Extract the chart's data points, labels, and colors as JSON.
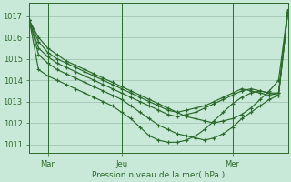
{
  "background_color": "#c8e8d8",
  "grid_color": "#aaccbb",
  "line_color": "#2d6a2d",
  "xlabel": "Pression niveau de la mer( hPa )",
  "yticks": [
    1011,
    1012,
    1013,
    1014,
    1015,
    1016,
    1017
  ],
  "ylim": [
    1010.6,
    1017.6
  ],
  "xtick_labels": [
    "Mar",
    "Jeu",
    "Mer"
  ],
  "xtick_positions": [
    2,
    10,
    22
  ],
  "xlim": [
    0,
    28
  ],
  "figsize": [
    3.2,
    2.0
  ],
  "dpi": 100,
  "series": [
    [
      1016.8,
      1016.0,
      1015.5,
      1015.2,
      1014.9,
      1014.7,
      1014.5,
      1014.3,
      1014.1,
      1013.9,
      1013.7,
      1013.5,
      1013.3,
      1013.1,
      1012.9,
      1012.7,
      1012.5,
      1012.3,
      1012.2,
      1012.1,
      1012.0,
      1012.1,
      1012.2,
      1012.4,
      1012.7,
      1013.1,
      1013.5,
      1014.0,
      1017.3
    ],
    [
      1016.8,
      1015.8,
      1015.3,
      1015.0,
      1014.8,
      1014.6,
      1014.4,
      1014.2,
      1014.0,
      1013.8,
      1013.6,
      1013.4,
      1013.2,
      1013.0,
      1012.8,
      1012.6,
      1012.5,
      1012.6,
      1012.7,
      1012.8,
      1013.0,
      1013.2,
      1013.4,
      1013.6,
      1013.5,
      1013.4,
      1013.3,
      1013.4,
      1017.2
    ],
    [
      1016.8,
      1015.5,
      1015.1,
      1014.8,
      1014.6,
      1014.4,
      1014.2,
      1014.0,
      1013.8,
      1013.6,
      1013.4,
      1013.2,
      1013.0,
      1012.8,
      1012.6,
      1012.4,
      1012.3,
      1012.4,
      1012.5,
      1012.7,
      1012.9,
      1013.1,
      1013.3,
      1013.5,
      1013.6,
      1013.5,
      1013.4,
      1013.4,
      1017.2
    ],
    [
      1016.8,
      1015.2,
      1014.8,
      1014.5,
      1014.3,
      1014.1,
      1013.9,
      1013.7,
      1013.5,
      1013.3,
      1013.1,
      1012.8,
      1012.5,
      1012.2,
      1011.9,
      1011.7,
      1011.5,
      1011.4,
      1011.3,
      1011.2,
      1011.3,
      1011.5,
      1011.8,
      1012.2,
      1012.5,
      1012.8,
      1013.1,
      1013.3,
      1017.2
    ],
    [
      1016.8,
      1014.5,
      1014.2,
      1014.0,
      1013.8,
      1013.6,
      1013.4,
      1013.2,
      1013.0,
      1012.8,
      1012.5,
      1012.2,
      1011.8,
      1011.4,
      1011.2,
      1011.1,
      1011.1,
      1011.2,
      1011.4,
      1011.7,
      1012.1,
      1012.5,
      1012.9,
      1013.2,
      1013.4,
      1013.5,
      1013.4,
      1013.3,
      1017.2
    ]
  ]
}
